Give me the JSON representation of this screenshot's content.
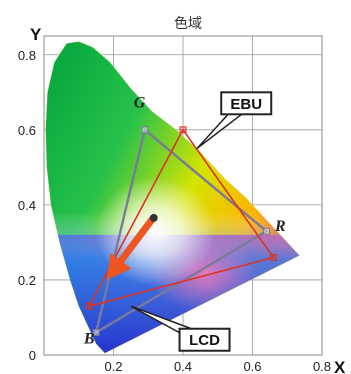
{
  "chart_data": {
    "type": "line",
    "title": "色域",
    "xlabel": "X",
    "ylabel": "Y",
    "xlim": [
      0,
      0.8
    ],
    "ylim": [
      0,
      0.85
    ],
    "x_ticks": [
      "0.2",
      "0.4",
      "0.6",
      "0.8"
    ],
    "y_ticks": [
      "0",
      "0.2",
      "0.4",
      "0.6",
      "0.8"
    ],
    "grid": true,
    "spectral_locus": {
      "x": [
        0.175,
        0.17,
        0.15,
        0.13,
        0.1,
        0.075,
        0.045,
        0.02,
        0.008,
        0.005,
        0.01,
        0.03,
        0.065,
        0.1,
        0.14,
        0.19,
        0.25,
        0.31,
        0.38,
        0.45,
        0.52,
        0.58,
        0.64,
        0.69,
        0.735
      ],
      "y": [
        0.005,
        0.01,
        0.03,
        0.07,
        0.13,
        0.2,
        0.3,
        0.4,
        0.5,
        0.6,
        0.7,
        0.78,
        0.83,
        0.835,
        0.82,
        0.78,
        0.71,
        0.65,
        0.6,
        0.54,
        0.47,
        0.42,
        0.36,
        0.31,
        0.265
      ]
    },
    "series": [
      {
        "name": "EBU",
        "color": "#7a7a9a",
        "x": [
          0.64,
          0.29,
          0.15
        ],
        "y": [
          0.33,
          0.6,
          0.06
        ]
      },
      {
        "name": "",
        "color": "#dd3322",
        "x": [
          0.66,
          0.4,
          0.13
        ],
        "y": [
          0.26,
          0.6,
          0.13
        ]
      }
    ],
    "vertex_labels": [
      {
        "text": "G",
        "x": 0.275,
        "y": 0.66
      },
      {
        "text": "R",
        "x": 0.68,
        "y": 0.33
      },
      {
        "text": "B",
        "x": 0.13,
        "y": 0.03
      }
    ],
    "callouts": [
      {
        "text": "EBU",
        "box_x": 0.51,
        "box_y": 0.7,
        "target_x": 0.44,
        "target_y": 0.55
      },
      {
        "text": "LCD",
        "box_x": 0.39,
        "box_y": 0.07,
        "target_x": 0.25,
        "target_y": 0.13
      }
    ],
    "arrow": {
      "from_x": 0.31,
      "from_y": 0.36,
      "to_x": 0.18,
      "to_y": 0.2,
      "color": "#ee5522"
    }
  }
}
